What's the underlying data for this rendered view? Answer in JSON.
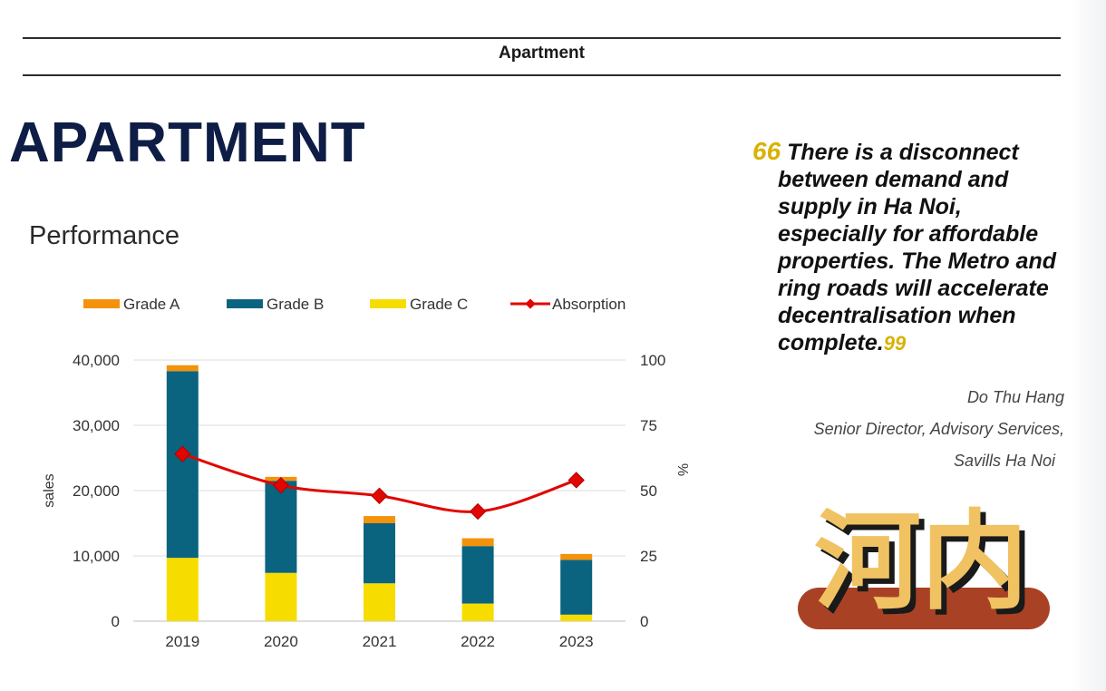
{
  "header": {
    "section_label": "Apartment"
  },
  "page_title": "APARTMENT",
  "subtitle": "Performance",
  "quote": {
    "lines": [
      "There is a disconnect",
      "between demand and",
      "supply in Ha Noi,",
      "especially for affordable",
      "properties. The Metro and",
      "ring roads will accelerate",
      "decentralisation when",
      "complete."
    ],
    "open_mark": "66",
    "close_mark": "99",
    "mark_color": "#d9b200"
  },
  "attribution": {
    "name": "Do Thu Hang",
    "role": "Senior Director, Advisory Services,",
    "org": "Savills Ha Noi"
  },
  "illustration": {
    "text": "河内",
    "letter_color": "#f0c262",
    "bar_color": "#a94225"
  },
  "chart_data": {
    "type": "bar",
    "stacked": true,
    "categories": [
      "2019",
      "2020",
      "2021",
      "2022",
      "2023"
    ],
    "series": [
      {
        "name": "Grade C",
        "color": "#f7dc00",
        "values": [
          9700,
          7400,
          5800,
          2700,
          1000
        ]
      },
      {
        "name": "Grade B",
        "color": "#0a6480",
        "values": [
          28600,
          14100,
          9200,
          8800,
          8400
        ]
      },
      {
        "name": "Grade A",
        "color": "#f4920b",
        "values": [
          900,
          600,
          1100,
          1200,
          900
        ]
      }
    ],
    "line_series": {
      "name": "Absorption",
      "color": "#e10600",
      "axis": "right",
      "values": [
        64,
        52,
        48,
        42,
        54
      ]
    },
    "legend_order": [
      "Grade A",
      "Grade B",
      "Grade C",
      "Absorption"
    ],
    "legend_position": "top",
    "ylabel": "sales",
    "y2label": "%",
    "ylim": [
      0,
      40000
    ],
    "y2lim": [
      0,
      100
    ],
    "yticks": [
      "0",
      "10,000",
      "20,000",
      "30,000",
      "40,000"
    ],
    "y2ticks": [
      "0",
      "25",
      "50",
      "75",
      "100"
    ],
    "grid": true
  }
}
